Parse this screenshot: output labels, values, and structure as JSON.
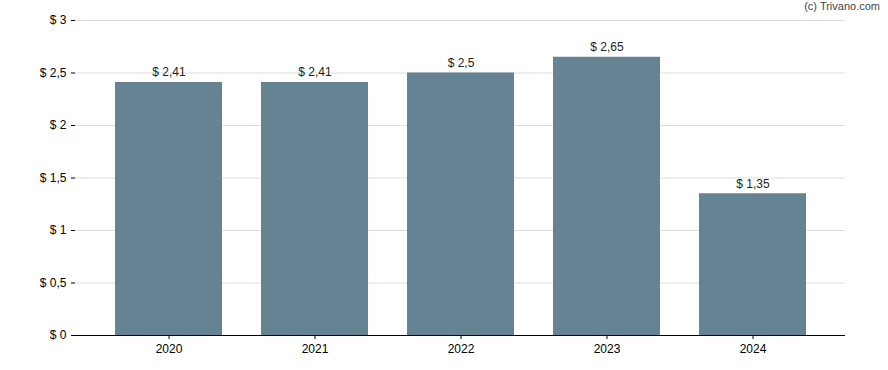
{
  "chart_data": {
    "type": "bar",
    "annotations": [
      "(c) Trivano.com"
    ],
    "categories": [
      "2020",
      "2021",
      "2022",
      "2023",
      "2024"
    ],
    "values": [
      2.41,
      2.41,
      2.5,
      2.65,
      1.35
    ],
    "value_labels": [
      "$ 2,41",
      "$ 2,41",
      "$ 2,5",
      "$ 2,65",
      "$ 1,35"
    ],
    "data_labels": true,
    "color": "#668394",
    "ylim": [
      0,
      3
    ],
    "yticks": [
      {
        "value": 0,
        "label": "$ 0"
      },
      {
        "value": 0.5,
        "label": "$ 0,5"
      },
      {
        "value": 1,
        "label": "$ 1"
      },
      {
        "value": 1.5,
        "label": "$ 1,5"
      },
      {
        "value": 2,
        "label": "$ 2"
      },
      {
        "value": 2.5,
        "label": "$ 2,5"
      },
      {
        "value": 3,
        "label": "$ 3"
      }
    ],
    "grid": true
  }
}
